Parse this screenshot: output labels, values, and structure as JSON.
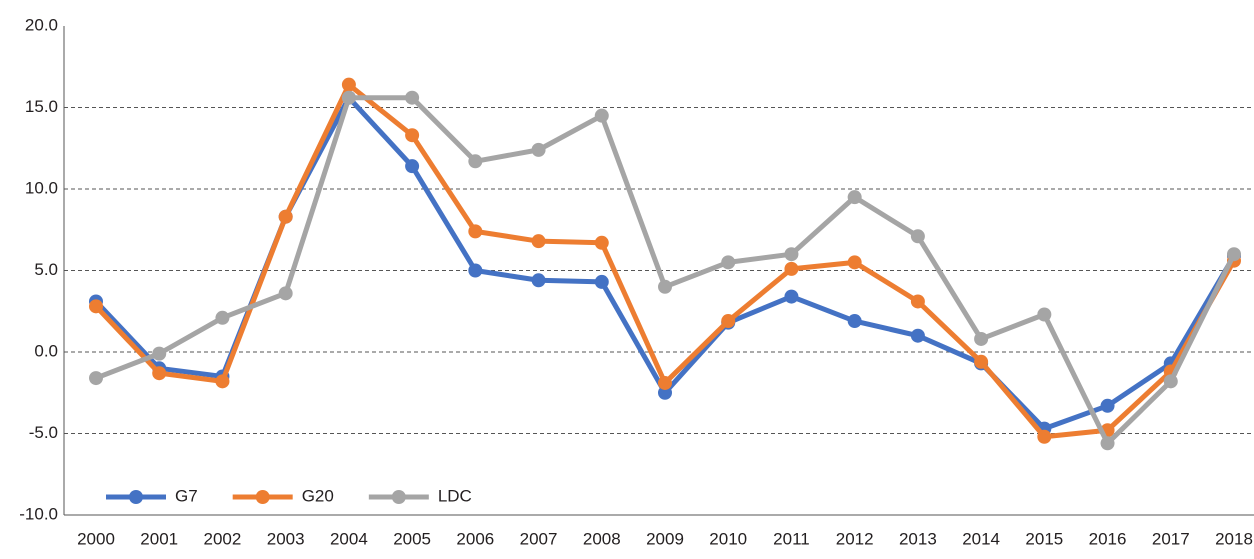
{
  "chart_data": {
    "type": "line",
    "categories": [
      "2000",
      "2001",
      "2002",
      "2003",
      "2004",
      "2005",
      "2006",
      "2007",
      "2008",
      "2009",
      "2010",
      "2011",
      "2012",
      "2013",
      "2014",
      "2015",
      "2016",
      "2017",
      "2018"
    ],
    "series": [
      {
        "name": "G7",
        "color": "#4472c4",
        "values": [
          3.1,
          -1.0,
          -1.5,
          8.3,
          15.6,
          11.4,
          5.0,
          4.4,
          4.3,
          -2.5,
          1.8,
          3.4,
          1.9,
          1.0,
          -0.7,
          -4.7,
          -3.3,
          -0.7,
          5.9
        ]
      },
      {
        "name": "G20",
        "color": "#ed7d31",
        "values": [
          2.8,
          -1.3,
          -1.8,
          8.3,
          16.4,
          13.3,
          7.4,
          6.8,
          6.7,
          -1.9,
          1.9,
          5.1,
          5.5,
          3.1,
          -0.6,
          -5.2,
          -4.8,
          -1.2,
          5.6
        ]
      },
      {
        "name": "LDC",
        "color": "#a5a5a5",
        "values": [
          -1.6,
          -0.1,
          2.1,
          3.6,
          15.6,
          15.6,
          11.7,
          12.4,
          14.5,
          4.0,
          5.5,
          6.0,
          9.5,
          7.1,
          0.8,
          2.3,
          -5.6,
          -1.8,
          6.0
        ]
      }
    ],
    "ylim": [
      -10,
      20
    ],
    "yticks": [
      {
        "value": -10,
        "label": "-10.0"
      },
      {
        "value": -5,
        "label": "-5.0"
      },
      {
        "value": 0,
        "label": "0.0"
      },
      {
        "value": 5,
        "label": "5.0"
      },
      {
        "value": 10,
        "label": "10.0"
      },
      {
        "value": 15,
        "label": "15.0"
      },
      {
        "value": 20,
        "label": "20.0"
      }
    ],
    "grid": true,
    "legend": "lower left"
  }
}
